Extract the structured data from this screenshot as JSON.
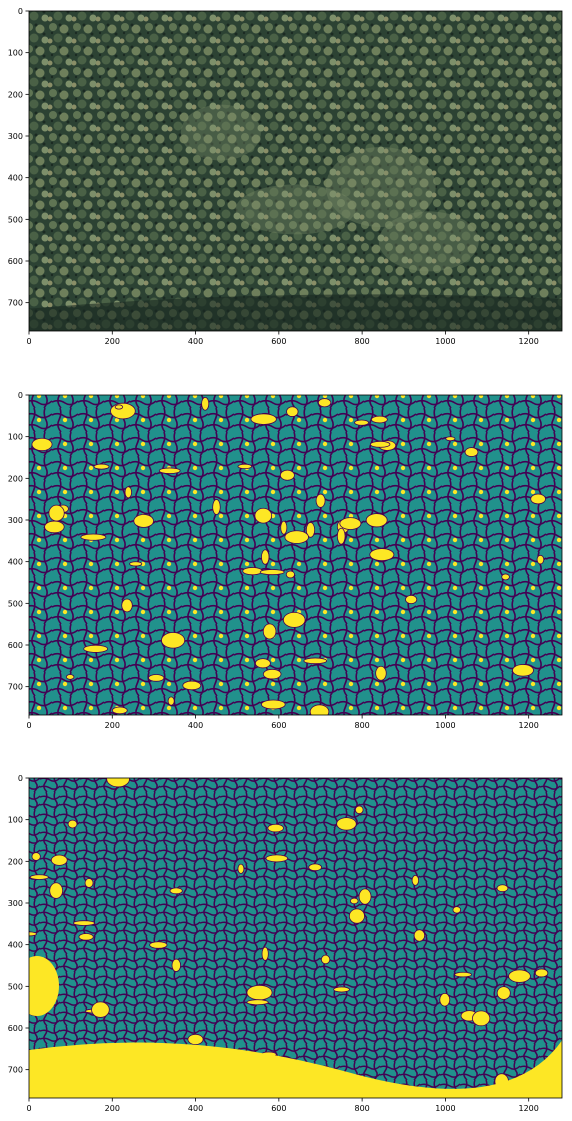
{
  "figure": {
    "layout": "three vertically stacked image panels"
  },
  "colors": {
    "viridis_purple": "#440154",
    "viridis_teal": "#21918c",
    "viridis_yellow": "#fde725",
    "forest_dark": "#1b2a22",
    "forest_mid": "#3d5a43",
    "forest_light": "#7d8f6a"
  },
  "chart_data": [
    {
      "type": "heatmap",
      "title": "",
      "description_kind": "aerial RGB image",
      "xlabel": "",
      "ylabel": "",
      "xlim": [
        0,
        1280
      ],
      "ylim": [
        768,
        0
      ],
      "xticks": [
        0,
        200,
        400,
        600,
        800,
        1000,
        1200
      ],
      "yticks": [
        0,
        100,
        200,
        300,
        400,
        500,
        600,
        700
      ],
      "grid": false,
      "legend": "none"
    },
    {
      "type": "heatmap",
      "title": "",
      "colormap": "viridis",
      "classes": [
        0,
        1,
        2
      ],
      "xlabel": "",
      "ylabel": "",
      "xlim": [
        0,
        1280
      ],
      "ylim": [
        768,
        0
      ],
      "xticks": [
        0,
        200,
        400,
        600,
        800,
        1000,
        1200
      ],
      "yticks": [
        0,
        100,
        200,
        300,
        400,
        500,
        600,
        700
      ],
      "grid": false,
      "legend": "none"
    },
    {
      "type": "heatmap",
      "title": "",
      "colormap": "viridis",
      "classes": [
        0,
        1,
        2
      ],
      "xlabel": "",
      "ylabel": "",
      "xlim": [
        0,
        1280
      ],
      "ylim": [
        768,
        0
      ],
      "xticks": [
        0,
        200,
        400,
        600,
        800,
        1000,
        1200
      ],
      "yticks": [
        0,
        100,
        200,
        300,
        400,
        500,
        600,
        700
      ],
      "grid": false,
      "legend": "none"
    }
  ]
}
